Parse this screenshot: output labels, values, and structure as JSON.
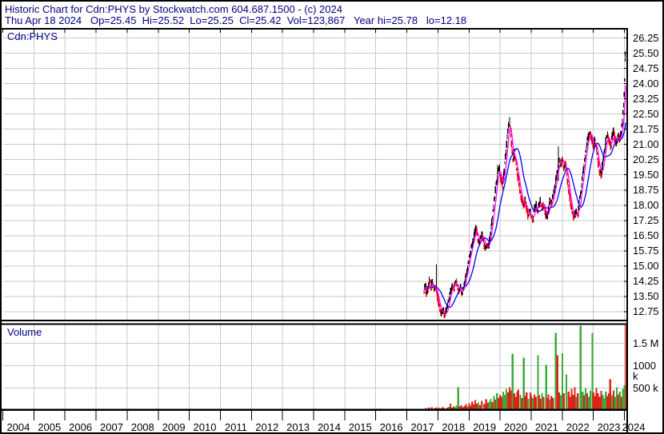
{
  "header": {
    "line1": "Historic Chart for Cdn:PHYS by Stockwatch.com 604.687.1500 - (c) 2024",
    "line2": "Thu Apr 18 2024   Op=25.45  Hi=25.52  Lo=25.25  Cl=25.42  Vol=123,867   Year hi=25.78   lo=12.18"
  },
  "price_pane_label": "Cdn:PHYS",
  "volume_pane_label": "Volume",
  "colors": {
    "header_text": "#000080",
    "grid": "#c9c9c9",
    "border": "#000000",
    "candle_up": "#000000",
    "candle_down": "#ee0000",
    "ma_fast": "#ff00ff",
    "ma_slow": "#0000ee",
    "vol_up": "#3aaa3a",
    "vol_down": "#dd2218",
    "vol_neutral": "#aaaaaa",
    "axis_text": "#000000"
  },
  "chart_data": {
    "type": "candlestick+volume",
    "symbol": "Cdn:PHYS",
    "title": "Historic Chart for Cdn:PHYS",
    "legend_position": "none",
    "grid": true,
    "price_axis": {
      "ticks": [
        26.25,
        25.5,
        24.75,
        24.0,
        23.25,
        22.5,
        21.75,
        21.0,
        20.25,
        19.5,
        18.75,
        18.0,
        17.25,
        16.5,
        15.75,
        15.0,
        14.25,
        13.5,
        12.75
      ],
      "visible_min": 12.3,
      "visible_max": 26.7
    },
    "volume_axis": {
      "ticks": [
        {
          "label": "1.5 M",
          "value": 1500
        },
        {
          "label": "1000 k",
          "value": 1000
        },
        {
          "label": "500 k",
          "value": 500
        }
      ],
      "unit": "k shares",
      "visible_max": 1900
    },
    "x_axis": {
      "years": [
        2004,
        2005,
        2006,
        2007,
        2008,
        2009,
        2010,
        2011,
        2012,
        2013,
        2014,
        2015,
        2016,
        2017,
        2018,
        2019,
        2020,
        2021,
        2022,
        2023,
        2024
      ]
    },
    "close": [
      [
        2017.55,
        13.8
      ],
      [
        2017.6,
        14.1
      ],
      [
        2017.63,
        13.6
      ],
      [
        2017.68,
        13.9
      ],
      [
        2017.72,
        14.3
      ],
      [
        2017.77,
        13.9
      ],
      [
        2017.82,
        14.2
      ],
      [
        2017.87,
        13.8
      ],
      [
        2017.92,
        14.0
      ],
      [
        2017.97,
        13.6
      ],
      [
        2018.02,
        13.2
      ],
      [
        2018.07,
        12.9
      ],
      [
        2018.12,
        12.6
      ],
      [
        2018.17,
        12.9
      ],
      [
        2018.22,
        12.5
      ],
      [
        2018.27,
        12.8
      ],
      [
        2018.32,
        13.1
      ],
      [
        2018.37,
        13.5
      ],
      [
        2018.42,
        13.8
      ],
      [
        2018.47,
        14.1
      ],
      [
        2018.52,
        13.9
      ],
      [
        2018.57,
        14.3
      ],
      [
        2018.62,
        14.0
      ],
      [
        2018.67,
        13.8
      ],
      [
        2018.72,
        14.0
      ],
      [
        2018.77,
        13.7
      ],
      [
        2018.82,
        13.9
      ],
      [
        2018.87,
        14.3
      ],
      [
        2018.92,
        14.7
      ],
      [
        2018.97,
        15.1
      ],
      [
        2019.02,
        15.5
      ],
      [
        2019.07,
        15.9
      ],
      [
        2019.12,
        16.2
      ],
      [
        2019.17,
        16.6
      ],
      [
        2019.22,
        16.9
      ],
      [
        2019.27,
        16.4
      ],
      [
        2019.32,
        16.1
      ],
      [
        2019.37,
        16.3
      ],
      [
        2019.42,
        16.7
      ],
      [
        2019.47,
        16.2
      ],
      [
        2019.52,
        15.9
      ],
      [
        2019.57,
        16.0
      ],
      [
        2019.62,
        15.9
      ],
      [
        2019.67,
        16.4
      ],
      [
        2019.72,
        17.0
      ],
      [
        2019.77,
        17.6
      ],
      [
        2019.82,
        18.3
      ],
      [
        2019.87,
        19.0
      ],
      [
        2019.92,
        19.6
      ],
      [
        2019.97,
        19.9
      ],
      [
        2020.02,
        19.3
      ],
      [
        2020.07,
        18.9
      ],
      [
        2020.12,
        19.5
      ],
      [
        2020.17,
        20.3
      ],
      [
        2020.22,
        21.2
      ],
      [
        2020.27,
        21.9
      ],
      [
        2020.3,
        22.15
      ],
      [
        2020.34,
        21.4
      ],
      [
        2020.38,
        20.7
      ],
      [
        2020.42,
        20.3
      ],
      [
        2020.46,
        20.6
      ],
      [
        2020.5,
        20.1
      ],
      [
        2020.55,
        19.6
      ],
      [
        2020.6,
        19.1
      ],
      [
        2020.65,
        18.6
      ],
      [
        2020.7,
        18.2
      ],
      [
        2020.75,
        17.9
      ],
      [
        2020.8,
        18.2
      ],
      [
        2020.85,
        17.8
      ],
      [
        2020.9,
        17.5
      ],
      [
        2020.95,
        17.7
      ],
      [
        2021.0,
        17.4
      ],
      [
        2021.05,
        17.3
      ],
      [
        2021.1,
        17.8
      ],
      [
        2021.15,
        18.1
      ],
      [
        2021.2,
        17.7
      ],
      [
        2021.25,
        18.0
      ],
      [
        2021.3,
        18.2
      ],
      [
        2021.35,
        17.9
      ],
      [
        2021.4,
        18.1
      ],
      [
        2021.45,
        17.6
      ],
      [
        2021.5,
        17.3
      ],
      [
        2021.55,
        17.8
      ],
      [
        2021.6,
        18.2
      ],
      [
        2021.65,
        18.0
      ],
      [
        2021.7,
        18.4
      ],
      [
        2021.75,
        18.8
      ],
      [
        2021.8,
        19.3
      ],
      [
        2021.85,
        19.8
      ],
      [
        2021.9,
        20.3
      ],
      [
        2021.95,
        19.9
      ],
      [
        2022.0,
        20.3
      ],
      [
        2022.05,
        19.8
      ],
      [
        2022.1,
        20.1
      ],
      [
        2022.15,
        19.5
      ],
      [
        2022.2,
        18.8
      ],
      [
        2022.25,
        18.2
      ],
      [
        2022.3,
        17.8
      ],
      [
        2022.35,
        17.5
      ],
      [
        2022.4,
        17.35
      ],
      [
        2022.45,
        17.8
      ],
      [
        2022.5,
        17.5
      ],
      [
        2022.55,
        18.1
      ],
      [
        2022.6,
        18.7
      ],
      [
        2022.65,
        19.4
      ],
      [
        2022.7,
        20.0
      ],
      [
        2022.75,
        20.6
      ],
      [
        2022.8,
        21.1
      ],
      [
        2022.85,
        21.5
      ],
      [
        2022.9,
        21.65
      ],
      [
        2022.95,
        21.2
      ],
      [
        2023.0,
        20.9
      ],
      [
        2023.05,
        21.3
      ],
      [
        2023.1,
        20.7
      ],
      [
        2023.15,
        20.1
      ],
      [
        2023.2,
        19.7
      ],
      [
        2023.25,
        19.5
      ],
      [
        2023.3,
        20.0
      ],
      [
        2023.35,
        20.6
      ],
      [
        2023.4,
        21.1
      ],
      [
        2023.45,
        21.5
      ],
      [
        2023.5,
        21.2
      ],
      [
        2023.55,
        20.9
      ],
      [
        2023.6,
        21.3
      ],
      [
        2023.65,
        21.6
      ],
      [
        2023.7,
        21.2
      ],
      [
        2023.75,
        21.0
      ],
      [
        2023.8,
        21.4
      ],
      [
        2023.85,
        21.2
      ],
      [
        2023.9,
        21.6
      ],
      [
        2023.95,
        22.4
      ],
      [
        2024.0,
        23.6
      ],
      [
        2024.02,
        24.6
      ],
      [
        2024.04,
        25.78
      ],
      [
        2024.05,
        25.42
      ]
    ],
    "spikes": [
      [
        2017.95,
        13.9,
        15.1
      ],
      [
        2019.92,
        19.6,
        20.0
      ],
      [
        2020.3,
        21.9,
        22.35
      ],
      [
        2021.88,
        19.2,
        20.9
      ]
    ],
    "volume_bars": [
      [
        2017.55,
        40,
        "r"
      ],
      [
        2017.6,
        55,
        "g"
      ],
      [
        2017.65,
        35,
        "r"
      ],
      [
        2017.7,
        60,
        "r"
      ],
      [
        2017.75,
        45,
        "g"
      ],
      [
        2017.8,
        70,
        "r"
      ],
      [
        2017.85,
        40,
        "n"
      ],
      [
        2017.9,
        55,
        "r"
      ],
      [
        2017.95,
        65,
        "r"
      ],
      [
        2018.0,
        50,
        "r"
      ],
      [
        2018.05,
        60,
        "g"
      ],
      [
        2018.1,
        45,
        "r"
      ],
      [
        2018.15,
        70,
        "r"
      ],
      [
        2018.2,
        55,
        "r"
      ],
      [
        2018.25,
        40,
        "g"
      ],
      [
        2018.3,
        60,
        "r"
      ],
      [
        2018.35,
        80,
        "g"
      ],
      [
        2018.4,
        150,
        "r"
      ],
      [
        2018.45,
        60,
        "r"
      ],
      [
        2018.5,
        90,
        "r"
      ],
      [
        2018.55,
        70,
        "g"
      ],
      [
        2018.6,
        110,
        "g"
      ],
      [
        2018.65,
        520,
        "g"
      ],
      [
        2018.7,
        90,
        "r"
      ],
      [
        2018.75,
        120,
        "r"
      ],
      [
        2018.8,
        70,
        "r"
      ],
      [
        2018.85,
        100,
        "r"
      ],
      [
        2018.9,
        140,
        "r"
      ],
      [
        2018.95,
        90,
        "g"
      ],
      [
        2019.0,
        160,
        "r"
      ],
      [
        2019.05,
        110,
        "r"
      ],
      [
        2019.1,
        200,
        "r"
      ],
      [
        2019.15,
        130,
        "r"
      ],
      [
        2019.2,
        230,
        "r"
      ],
      [
        2019.25,
        150,
        "r"
      ],
      [
        2019.3,
        180,
        "g"
      ],
      [
        2019.35,
        120,
        "r"
      ],
      [
        2019.4,
        210,
        "r"
      ],
      [
        2019.45,
        160,
        "n"
      ],
      [
        2019.5,
        140,
        "r"
      ],
      [
        2019.55,
        250,
        "r"
      ],
      [
        2019.6,
        170,
        "r"
      ],
      [
        2019.65,
        200,
        "g"
      ],
      [
        2019.7,
        260,
        "g"
      ],
      [
        2019.75,
        190,
        "r"
      ],
      [
        2019.8,
        320,
        "g"
      ],
      [
        2019.85,
        240,
        "r"
      ],
      [
        2019.9,
        380,
        "g"
      ],
      [
        2019.95,
        280,
        "r"
      ],
      [
        2020.0,
        340,
        "r"
      ],
      [
        2020.05,
        300,
        "r"
      ],
      [
        2020.1,
        420,
        "g"
      ],
      [
        2020.15,
        350,
        "g"
      ],
      [
        2020.2,
        480,
        "g"
      ],
      [
        2020.25,
        400,
        "r"
      ],
      [
        2020.3,
        520,
        "r"
      ],
      [
        2020.35,
        450,
        "r"
      ],
      [
        2020.4,
        1270,
        "g"
      ],
      [
        2020.45,
        380,
        "r"
      ],
      [
        2020.5,
        300,
        "r"
      ],
      [
        2020.55,
        420,
        "r"
      ],
      [
        2020.58,
        460,
        "r"
      ],
      [
        2020.65,
        350,
        "g"
      ],
      [
        2020.7,
        280,
        "r"
      ],
      [
        2020.76,
        1180,
        "g"
      ],
      [
        2020.8,
        320,
        "r"
      ],
      [
        2020.85,
        400,
        "r"
      ],
      [
        2020.9,
        260,
        "g"
      ],
      [
        2020.97,
        400,
        "r"
      ],
      [
        2021.0,
        330,
        "r"
      ],
      [
        2021.05,
        280,
        "g"
      ],
      [
        2021.1,
        360,
        "r"
      ],
      [
        2021.15,
        300,
        "r"
      ],
      [
        2021.22,
        1230,
        "g"
      ],
      [
        2021.25,
        340,
        "r"
      ],
      [
        2021.3,
        260,
        "r"
      ],
      [
        2021.35,
        380,
        "g"
      ],
      [
        2021.4,
        300,
        "r"
      ],
      [
        2021.48,
        1020,
        "g"
      ],
      [
        2021.5,
        280,
        "r"
      ],
      [
        2021.55,
        360,
        "r"
      ],
      [
        2021.6,
        240,
        "g"
      ],
      [
        2021.65,
        320,
        "r"
      ],
      [
        2021.7,
        280,
        "r"
      ],
      [
        2021.79,
        1730,
        "g"
      ],
      [
        2021.84,
        1230,
        "r"
      ],
      [
        2021.9,
        400,
        "r"
      ],
      [
        2021.95,
        340,
        "g"
      ],
      [
        2022.0,
        1280,
        "g"
      ],
      [
        2022.05,
        380,
        "r"
      ],
      [
        2022.13,
        800,
        "g"
      ],
      [
        2022.2,
        420,
        "r"
      ],
      [
        2022.25,
        300,
        "r"
      ],
      [
        2022.3,
        480,
        "r"
      ],
      [
        2022.35,
        350,
        "r"
      ],
      [
        2022.4,
        520,
        "r"
      ],
      [
        2022.45,
        300,
        "g"
      ],
      [
        2022.5,
        380,
        "r"
      ],
      [
        2022.59,
        1890,
        "g"
      ],
      [
        2022.65,
        420,
        "g"
      ],
      [
        2022.7,
        340,
        "r"
      ],
      [
        2022.75,
        500,
        "g"
      ],
      [
        2022.8,
        380,
        "r"
      ],
      [
        2022.85,
        300,
        "g"
      ],
      [
        2022.9,
        450,
        "g"
      ],
      [
        2022.97,
        1730,
        "g"
      ],
      [
        2023.0,
        400,
        "r"
      ],
      [
        2023.05,
        320,
        "r"
      ],
      [
        2023.1,
        500,
        "r"
      ],
      [
        2023.15,
        380,
        "r"
      ],
      [
        2023.2,
        300,
        "r"
      ],
      [
        2023.25,
        440,
        "r"
      ],
      [
        2023.3,
        350,
        "g"
      ],
      [
        2023.35,
        280,
        "g"
      ],
      [
        2023.4,
        420,
        "g"
      ],
      [
        2023.45,
        320,
        "r"
      ],
      [
        2023.5,
        380,
        "r"
      ],
      [
        2023.54,
        700,
        "r"
      ],
      [
        2023.6,
        340,
        "g"
      ],
      [
        2023.65,
        450,
        "r"
      ],
      [
        2023.7,
        300,
        "g"
      ],
      [
        2023.75,
        520,
        "g"
      ],
      [
        2023.8,
        360,
        "r"
      ],
      [
        2023.85,
        420,
        "g"
      ],
      [
        2023.9,
        300,
        "r"
      ],
      [
        2023.95,
        480,
        "g"
      ],
      [
        2024.0,
        560,
        "g"
      ],
      [
        2024.05,
        1900,
        "r"
      ]
    ]
  }
}
